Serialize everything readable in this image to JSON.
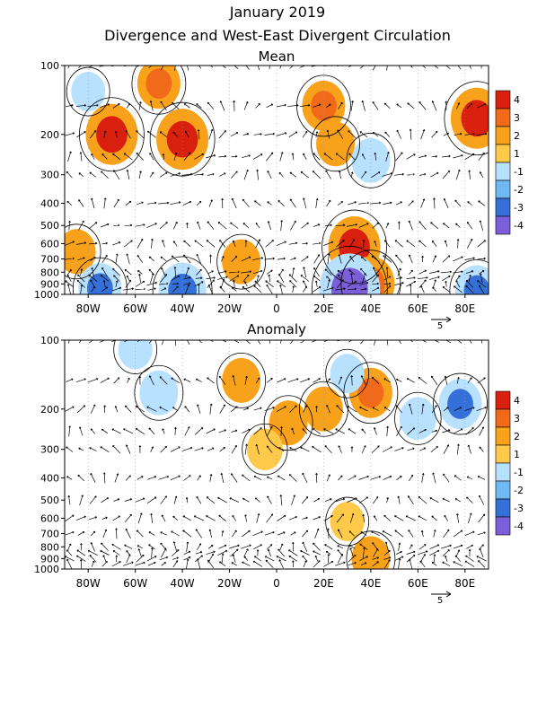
{
  "header": {
    "title": "January 2019",
    "subtitle": "Divergence and West-East Divergent Circulation"
  },
  "colors": {
    "pos1": "#ffc94a",
    "pos2": "#f7a21a",
    "pos3": "#f06a1a",
    "pos4": "#d9200f",
    "neg1": "#b8e0ff",
    "neg2": "#6fb8f2",
    "neg3": "#3570d8",
    "neg4": "#7a5fd8"
  },
  "chart_data": [
    {
      "type": "heatmap",
      "title": "Mean",
      "x_tick_labels": [
        "80W",
        "60W",
        "40W",
        "20W",
        "0",
        "20E",
        "40E",
        "60E",
        "80E"
      ],
      "x_ticks": [
        -80,
        -60,
        -40,
        -20,
        0,
        20,
        40,
        60,
        80
      ],
      "xlim": [
        -90,
        90
      ],
      "y_tick_labels": [
        "100",
        "200",
        "300",
        "400",
        "500",
        "600",
        "700",
        "800",
        "900",
        "1000"
      ],
      "y_ticks": [
        100,
        200,
        300,
        400,
        500,
        600,
        700,
        800,
        900,
        1000
      ],
      "ylim": [
        1000,
        100
      ],
      "y_scale": "log",
      "colorbar": {
        "levels": [
          "4",
          "3",
          "2",
          "1",
          "-1",
          "-2",
          "-3",
          "-4"
        ],
        "colors": [
          "#d9200f",
          "#f06a1a",
          "#f7a21a",
          "#ffc94a",
          "#b8e0ff",
          "#6fb8f2",
          "#3570d8",
          "#7a5fd8"
        ]
      },
      "reference_vector_label": "5",
      "blobs": [
        {
          "lon": -70,
          "p": 200,
          "value": 3.0
        },
        {
          "lon": -40,
          "p": 210,
          "value": 3.0
        },
        {
          "lon": -50,
          "p": 120,
          "value": 2.0
        },
        {
          "lon": 20,
          "p": 150,
          "value": 2.0
        },
        {
          "lon": 25,
          "p": 220,
          "value": 1.5
        },
        {
          "lon": 85,
          "p": 170,
          "value": 3.0
        },
        {
          "lon": -85,
          "p": 650,
          "value": 1.5
        },
        {
          "lon": -15,
          "p": 720,
          "value": 1.5
        },
        {
          "lon": 33,
          "p": 620,
          "value": 3.0
        },
        {
          "lon": 40,
          "p": 900,
          "value": 2.5
        },
        {
          "lon": -80,
          "p": 130,
          "value": -1.0
        },
        {
          "lon": 40,
          "p": 260,
          "value": -1.5
        },
        {
          "lon": -40,
          "p": 960,
          "value": -2.5
        },
        {
          "lon": -75,
          "p": 940,
          "value": -2.0
        },
        {
          "lon": 31,
          "p": 950,
          "value": -4.0
        },
        {
          "lon": 85,
          "p": 960,
          "value": -2.0
        }
      ]
    },
    {
      "type": "heatmap",
      "title": "Anomaly",
      "x_tick_labels": [
        "80W",
        "60W",
        "40W",
        "20W",
        "0",
        "20E",
        "40E",
        "60E",
        "80E"
      ],
      "x_ticks": [
        -80,
        -60,
        -40,
        -20,
        0,
        20,
        40,
        60,
        80
      ],
      "xlim": [
        -90,
        90
      ],
      "y_tick_labels": [
        "100",
        "200",
        "300",
        "400",
        "500",
        "600",
        "700",
        "800",
        "900",
        "1000"
      ],
      "y_ticks": [
        100,
        200,
        300,
        400,
        500,
        600,
        700,
        800,
        900,
        1000
      ],
      "ylim": [
        1000,
        100
      ],
      "y_scale": "log",
      "colorbar": {
        "levels": [
          "4",
          "3",
          "2",
          "1",
          "-1",
          "-2",
          "-3",
          "-4"
        ],
        "colors": [
          "#d9200f",
          "#f06a1a",
          "#f7a21a",
          "#ffc94a",
          "#b8e0ff",
          "#6fb8f2",
          "#3570d8",
          "#7a5fd8"
        ]
      },
      "reference_vector_label": "5",
      "blobs": [
        {
          "lon": -15,
          "p": 150,
          "value": 1.5
        },
        {
          "lon": 5,
          "p": 230,
          "value": 1.5
        },
        {
          "lon": 20,
          "p": 200,
          "value": 1.5
        },
        {
          "lon": -5,
          "p": 300,
          "value": 1.2
        },
        {
          "lon": 40,
          "p": 170,
          "value": 2.0
        },
        {
          "lon": -50,
          "p": 170,
          "value": -1.5
        },
        {
          "lon": -60,
          "p": 110,
          "value": -1.0
        },
        {
          "lon": 30,
          "p": 140,
          "value": -1.0
        },
        {
          "lon": 78,
          "p": 190,
          "value": -2.0
        },
        {
          "lon": 60,
          "p": 220,
          "value": -1.3
        },
        {
          "lon": 40,
          "p": 900,
          "value": 1.5
        },
        {
          "lon": 30,
          "p": 620,
          "value": 1.0
        }
      ]
    }
  ]
}
